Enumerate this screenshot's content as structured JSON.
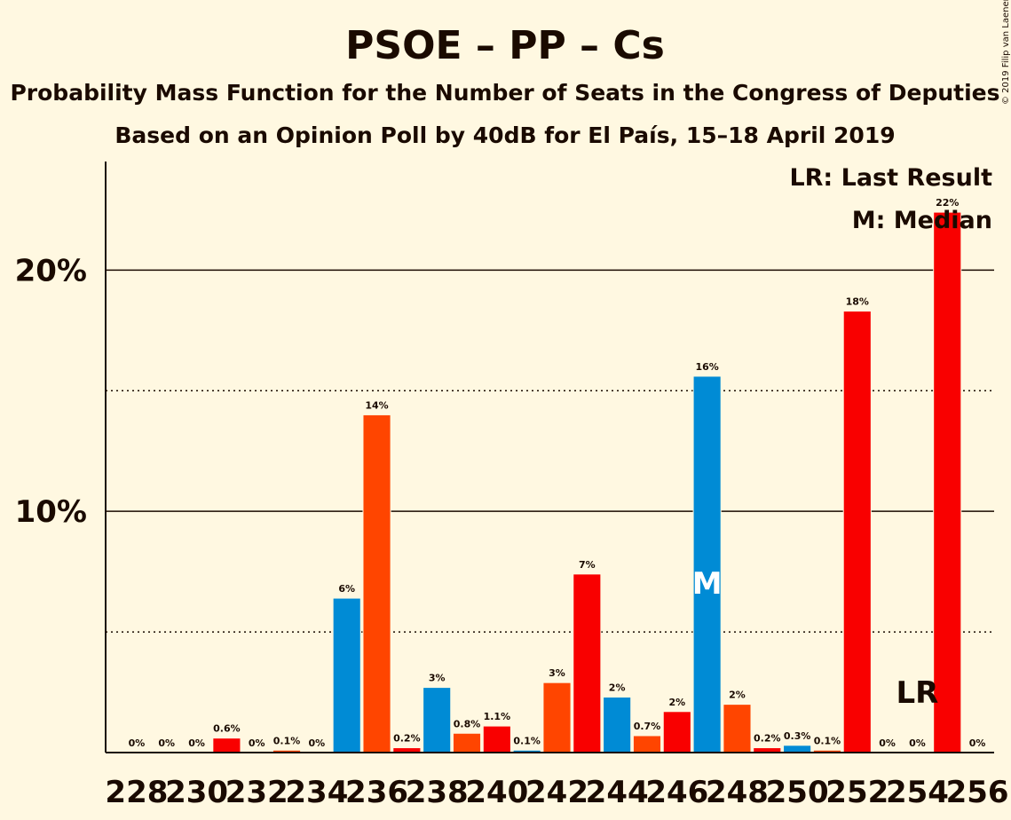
{
  "colors": {
    "background": "#FFF8E1",
    "psoe": "#F90000",
    "pp": "#008BD5",
    "cs": "#FF4500",
    "text": "#1a0a00"
  },
  "chart_data": {
    "type": "bar",
    "title": "PSOE – PP – Cs",
    "subtitle": "Probability Mass Function for the Number of Seats in the Congress of Deputies",
    "subtitle2": "Based on an Opinion Poll by 40dB for El País, 15–18 April 2019",
    "copyright": "© 2019 Filip van Laenen",
    "legend_lr": "LR: Last Result",
    "legend_m": "M: Median",
    "median_label": "M",
    "lr_label": "LR",
    "median_seat": 247,
    "last_result_seat": 254,
    "ylim": [
      0,
      24.5
    ],
    "grid": true,
    "legend_placement": "top-right",
    "ytick_labels": [
      {
        "value": 10,
        "label": "10%"
      },
      {
        "value": 20,
        "label": "20%"
      }
    ],
    "xtick_labels": [
      "228",
      "230",
      "232",
      "234",
      "236",
      "238",
      "240",
      "242",
      "244",
      "246",
      "248",
      "250",
      "252",
      "254",
      "256"
    ],
    "bars": [
      {
        "x": 228,
        "value": 0,
        "label": "0%",
        "party": "psoe"
      },
      {
        "x": 229,
        "value": 0,
        "label": "0%",
        "party": "pp"
      },
      {
        "x": 230,
        "value": 0,
        "label": "0%",
        "party": "cs"
      },
      {
        "x": 231,
        "value": 0.6,
        "label": "0.6%",
        "party": "psoe"
      },
      {
        "x": 232,
        "value": 0,
        "label": "0%",
        "party": "pp"
      },
      {
        "x": 233,
        "value": 0.1,
        "label": "0.1%",
        "party": "cs"
      },
      {
        "x": 234,
        "value": 0,
        "label": "0%",
        "party": "psoe"
      },
      {
        "x": 235,
        "value": 6.4,
        "label": "6%",
        "party": "pp"
      },
      {
        "x": 236,
        "value": 14.0,
        "label": "14%",
        "party": "cs"
      },
      {
        "x": 237,
        "value": 0.2,
        "label": "0.2%",
        "party": "psoe"
      },
      {
        "x": 238,
        "value": 2.7,
        "label": "3%",
        "party": "pp"
      },
      {
        "x": 239,
        "value": 0.8,
        "label": "0.8%",
        "party": "cs"
      },
      {
        "x": 240,
        "value": 1.1,
        "label": "1.1%",
        "party": "psoe"
      },
      {
        "x": 241,
        "value": 0.1,
        "label": "0.1%",
        "party": "pp"
      },
      {
        "x": 242,
        "value": 2.9,
        "label": "3%",
        "party": "cs"
      },
      {
        "x": 243,
        "value": 7.4,
        "label": "7%",
        "party": "psoe"
      },
      {
        "x": 244,
        "value": 2.3,
        "label": "2%",
        "party": "pp"
      },
      {
        "x": 245,
        "value": 0.7,
        "label": "0.7%",
        "party": "cs"
      },
      {
        "x": 246,
        "value": 1.7,
        "label": "2%",
        "party": "psoe"
      },
      {
        "x": 247,
        "value": 15.6,
        "label": "16%",
        "party": "pp"
      },
      {
        "x": 248,
        "value": 2.0,
        "label": "2%",
        "party": "cs"
      },
      {
        "x": 249,
        "value": 0.2,
        "label": "0.2%",
        "party": "psoe"
      },
      {
        "x": 250,
        "value": 0.3,
        "label": "0.3%",
        "party": "pp"
      },
      {
        "x": 251,
        "value": 0.1,
        "label": "0.1%",
        "party": "cs"
      },
      {
        "x": 252,
        "value": 18.3,
        "label": "18%",
        "party": "psoe"
      },
      {
        "x": 253,
        "value": 0,
        "label": "0%",
        "party": "pp"
      },
      {
        "x": 254,
        "value": 0,
        "label": "0%",
        "party": "cs"
      },
      {
        "x": 255,
        "value": 22.4,
        "label": "22%",
        "party": "psoe"
      },
      {
        "x": 256,
        "value": 0,
        "label": "0%",
        "party": "pp"
      }
    ]
  }
}
